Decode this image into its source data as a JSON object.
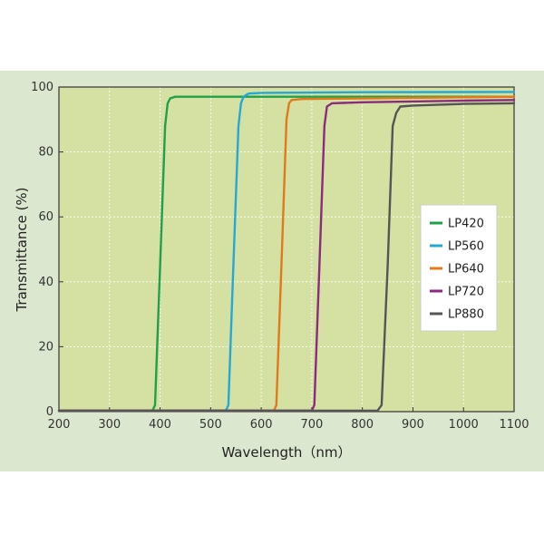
{
  "chart_data": {
    "type": "line",
    "xlabel": "Wavelength（nm）",
    "ylabel": "Transmittance (%)",
    "xlim": [
      200,
      1100
    ],
    "ylim": [
      0,
      100
    ],
    "xticks": [
      200,
      300,
      400,
      500,
      600,
      700,
      800,
      900,
      1000,
      1100
    ],
    "yticks": [
      0,
      20,
      40,
      60,
      80,
      100
    ],
    "grid": true,
    "legend_position": "right",
    "colors": {
      "plot_background": "#d5e1a3",
      "figure_background": "#dce7cf",
      "grid": "#ffffff"
    },
    "series": [
      {
        "name": "LP420",
        "color": "#21a04a",
        "x": [
          200,
          385,
          390,
          400,
          410,
          415,
          420,
          430,
          460,
          600,
          800,
          1100
        ],
        "y": [
          0.3,
          0.3,
          2,
          45,
          88,
          95,
          96.5,
          97,
          97,
          97,
          97,
          97
        ]
      },
      {
        "name": "LP560",
        "color": "#25a8d6",
        "x": [
          200,
          530,
          535,
          545,
          555,
          560,
          565,
          575,
          600,
          800,
          1100
        ],
        "y": [
          0.3,
          0.3,
          2,
          45,
          88,
          95,
          97,
          98,
          98.2,
          98.4,
          98.5
        ]
      },
      {
        "name": "LP640",
        "color": "#e07a1c",
        "x": [
          200,
          625,
          630,
          640,
          650,
          655,
          660,
          680,
          800,
          1100
        ],
        "y": [
          0.3,
          0.3,
          2,
          45,
          90,
          95,
          96,
          96.3,
          96.5,
          97
        ]
      },
      {
        "name": "LP720",
        "color": "#8a2b7d",
        "x": [
          200,
          700,
          705,
          715,
          725,
          730,
          740,
          800,
          1000,
          1100
        ],
        "y": [
          0.3,
          0.3,
          2,
          45,
          88,
          94,
          95,
          95.3,
          95.8,
          96
        ]
      },
      {
        "name": "LP880",
        "color": "#555555",
        "x": [
          200,
          830,
          838,
          850,
          860,
          867,
          875,
          900,
          1000,
          1100
        ],
        "y": [
          0.3,
          0.3,
          2,
          45,
          88,
          92,
          94,
          94.3,
          94.8,
          95
        ]
      }
    ]
  }
}
